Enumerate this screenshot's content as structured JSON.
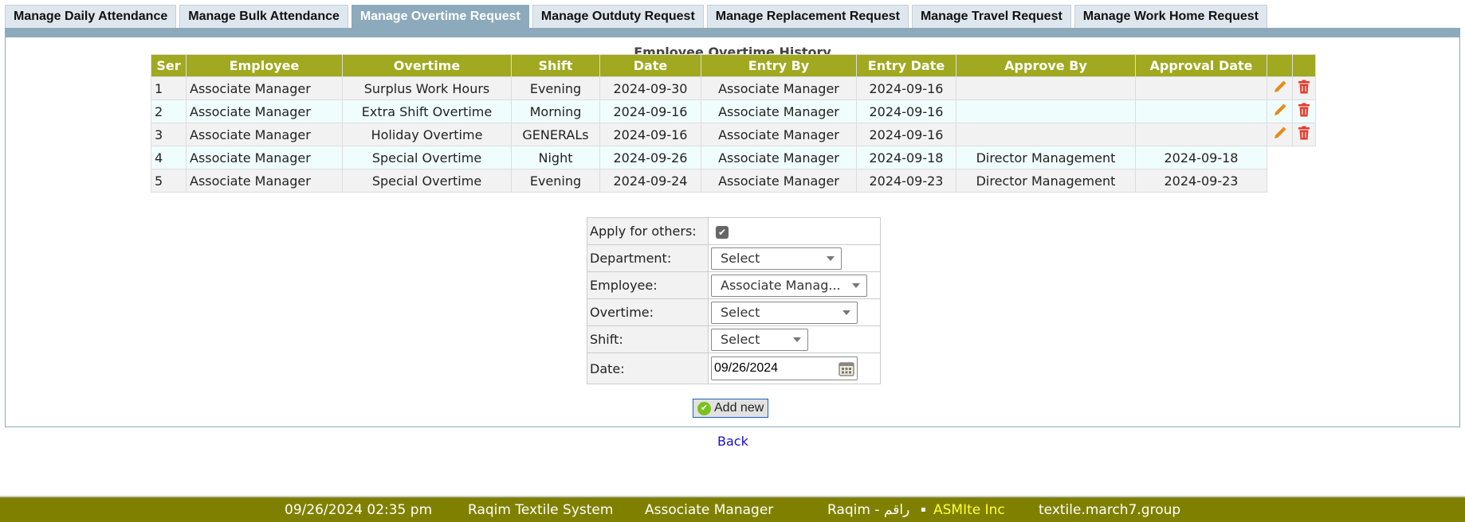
{
  "tabs": [
    "Manage Daily Attendance",
    "Manage Bulk Attendance",
    "Manage Overtime Request",
    "Manage Outduty Request",
    "Manage Replacement Request",
    "Manage Travel Request",
    "Manage Work Home Request"
  ],
  "active_tab": 2,
  "history": {
    "title": "Employee Overtime History",
    "columns": [
      "Ser",
      "Employee",
      "Overtime",
      "Shift",
      "Date",
      "Entry By",
      "Entry Date",
      "Approve By",
      "Approval Date"
    ],
    "rows": [
      [
        "1",
        "Associate Manager",
        "Surplus Work Hours",
        "Evening",
        "2024-09-30",
        "Associate Manager",
        "2024-09-16",
        "",
        ""
      ],
      [
        "2",
        "Associate Manager",
        "Extra Shift Overtime",
        "Morning",
        "2024-09-16",
        "Associate Manager",
        "2024-09-16",
        "",
        ""
      ],
      [
        "3",
        "Associate Manager",
        "Holiday Overtime",
        "GENERALs",
        "2024-09-16",
        "Associate Manager",
        "2024-09-16",
        "",
        ""
      ],
      [
        "4",
        "Associate Manager",
        "Special Overtime",
        "Night",
        "2024-09-26",
        "Associate Manager",
        "2024-09-18",
        "Director Management",
        "2024-09-18"
      ],
      [
        "5",
        "Associate Manager",
        "Special Overtime",
        "Evening",
        "2024-09-24",
        "Associate Manager",
        "2024-09-23",
        "Director Management",
        "2024-09-23"
      ]
    ],
    "editable_rows": [
      true,
      true,
      true,
      false,
      false
    ]
  },
  "form": {
    "apply_label": "Apply for others:",
    "apply_checked": true,
    "department_label": "Department:",
    "department_value": "Select",
    "employee_label": "Employee:",
    "employee_value": "Associate Manag...",
    "overtime_label": "Overtime:",
    "overtime_value": "Select",
    "shift_label": "Shift:",
    "shift_value": "Select",
    "date_label": "Date:",
    "date_value": "09/26/2024",
    "add_label": "Add new"
  },
  "back_label": "Back",
  "footer": {
    "datetime": "09/26/2024 02:35 pm",
    "system": "Raqim Textile System",
    "user": "Associate Manager",
    "brand": "Raqim - راقم",
    "company": "ASMIte Inc",
    "domain": "textile.march7.group"
  },
  "colors": {
    "header": "#a0a91f",
    "tab_active": "#8caabb",
    "footer": "#808000",
    "company": "#ffff33"
  }
}
